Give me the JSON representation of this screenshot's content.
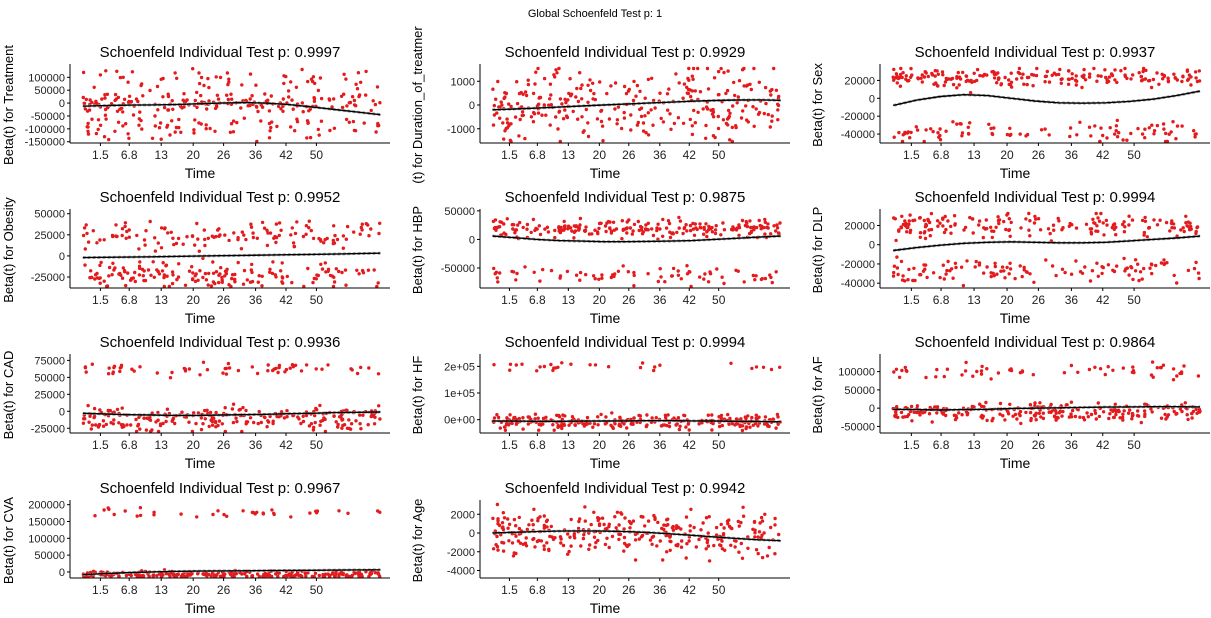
{
  "figure": {
    "global_title": "Global Schoenfeld Test p: 1",
    "colors": {
      "points": "#e41a1c",
      "line": "#000000",
      "band": "#9e9e9e",
      "axis": "#000000"
    }
  },
  "chart_data": [
    {
      "type": "scatter",
      "title": "Schoenfeld Individual Test p: 0.9997",
      "xlabel": "Time",
      "ylabel": "Beta(t) for Treatment",
      "x_ticks": [
        "1.5",
        "6.8",
        "13",
        "20",
        "26",
        "36",
        "42",
        "50"
      ],
      "y_ticks": [
        100000,
        50000,
        0,
        -50000,
        -100000,
        -150000
      ],
      "y_tick_labels": [
        "100000",
        "50000",
        "0",
        "-50000",
        "-100000",
        "-150000"
      ],
      "ylim": [
        -155000,
        140000
      ],
      "grid": false,
      "smooth": [
        -12000,
        -10000,
        -8000,
        -7000,
        -6000,
        -3000,
        0,
        2000,
        0,
        -6000,
        -15000,
        -25000,
        -35000,
        -45000
      ],
      "clusters": [
        {
          "center": 0,
          "spread": 18000,
          "frac": 0.55
        },
        {
          "center": 85000,
          "spread": 25000,
          "frac": 0.2
        },
        {
          "center": -95000,
          "spread": 25000,
          "frac": 0.25
        }
      ]
    },
    {
      "type": "scatter",
      "title": "Schoenfeld Individual Test p: 0.9929",
      "xlabel": "Time",
      "ylabel": "(t) for Duration_of_treatmer",
      "x_ticks": [
        "1.5",
        "6.8",
        "13",
        "20",
        "26",
        "36",
        "42",
        "50"
      ],
      "y_ticks": [
        1000,
        0,
        -1000
      ],
      "y_tick_labels": [
        "1000",
        "0",
        "-1000"
      ],
      "ylim": [
        -1600,
        1600
      ],
      "grid": false,
      "smooth": [
        -200,
        -170,
        -130,
        -90,
        -40,
        0,
        40,
        80,
        120,
        160,
        190,
        210,
        215,
        200
      ],
      "clusters": [
        {
          "center": 0,
          "spread": 750,
          "frac": 1.0
        }
      ]
    },
    {
      "type": "scatter",
      "title": "Schoenfeld Individual Test p: 0.9937",
      "xlabel": "Time",
      "ylabel": "Beta(t) for Sex",
      "x_ticks": [
        "1.5",
        "6.8",
        "13",
        "20",
        "26",
        "36",
        "42",
        "50"
      ],
      "y_ticks": [
        20000,
        0,
        -20000,
        -40000
      ],
      "y_tick_labels": [
        "20000",
        "0",
        "-20000",
        "-40000"
      ],
      "ylim": [
        -50000,
        35000
      ],
      "grid": false,
      "smooth": [
        -8000,
        -2000,
        2000,
        4000,
        3000,
        0,
        -3000,
        -5000,
        -5500,
        -5000,
        -3500,
        -1000,
        3000,
        8000
      ],
      "clusters": [
        {
          "center": 23000,
          "spread": 5500,
          "frac": 0.7
        },
        {
          "center": -38000,
          "spread": 5500,
          "frac": 0.3
        }
      ]
    },
    {
      "type": "scatter",
      "title": "Schoenfeld Individual Test p: 0.9952",
      "xlabel": "Time",
      "ylabel": "Beta(t) for Obesity",
      "x_ticks": [
        "1.5",
        "6.8",
        "13",
        "20",
        "26",
        "36",
        "42",
        "50"
      ],
      "y_ticks": [
        50000,
        25000,
        0,
        -25000
      ],
      "y_tick_labels": [
        "50000",
        "25000",
        "0",
        "-25000"
      ],
      "ylim": [
        -38000,
        52000
      ],
      "grid": false,
      "smooth": [
        -2000,
        -1700,
        -1400,
        -1000,
        -600,
        -200,
        200,
        600,
        1000,
        1400,
        1800,
        2200,
        2700,
        3200
      ],
      "clusters": [
        {
          "center": 25000,
          "spread": 8000,
          "frac": 0.5
        },
        {
          "center": -22000,
          "spread": 8000,
          "frac": 0.5
        }
      ]
    },
    {
      "type": "scatter",
      "title": "Schoenfeld Individual Test p: 0.9875",
      "xlabel": "Time",
      "ylabel": "Beta(t) for HBP",
      "x_ticks": [
        "1.5",
        "6.8",
        "13",
        "20",
        "26",
        "36",
        "42",
        "50"
      ],
      "y_ticks": [
        50000,
        0,
        -50000
      ],
      "y_tick_labels": [
        "50000",
        "0",
        "-50000"
      ],
      "ylim": [
        -85000,
        48000
      ],
      "grid": false,
      "smooth": [
        6000,
        3000,
        0,
        -2000,
        -3000,
        -4000,
        -4000,
        -3500,
        -3000,
        -2000,
        0,
        2000,
        4000,
        6000
      ],
      "clusters": [
        {
          "center": 18000,
          "spread": 8000,
          "frac": 0.75
        },
        {
          "center": -65000,
          "spread": 8000,
          "frac": 0.25
        }
      ]
    },
    {
      "type": "scatter",
      "title": "Schoenfeld Individual Test p: 0.9994",
      "xlabel": "Time",
      "ylabel": "Beta(t) for DLP",
      "x_ticks": [
        "1.5",
        "6.8",
        "13",
        "20",
        "26",
        "36",
        "42",
        "50"
      ],
      "y_ticks": [
        20000,
        0,
        -20000,
        -40000
      ],
      "y_tick_labels": [
        "20000",
        "0",
        "-20000",
        "-40000"
      ],
      "ylim": [
        -45000,
        34000
      ],
      "grid": false,
      "smooth": [
        -6000,
        -3000,
        -500,
        1500,
        2500,
        3000,
        2500,
        2000,
        2000,
        2500,
        4000,
        5500,
        7000,
        9000
      ],
      "clusters": [
        {
          "center": 20000,
          "spread": 6000,
          "frac": 0.6
        },
        {
          "center": -27000,
          "spread": 6000,
          "frac": 0.4
        }
      ]
    },
    {
      "type": "scatter",
      "title": "Schoenfeld Individual Test p: 0.9936",
      "xlabel": "Time",
      "ylabel": "Beta(t) for CAD",
      "x_ticks": [
        "1.5",
        "6.8",
        "13",
        "20",
        "26",
        "36",
        "42",
        "50"
      ],
      "y_ticks": [
        75000,
        50000,
        25000,
        0,
        -25000
      ],
      "y_tick_labels": [
        "75000",
        "50000",
        "25000",
        "0",
        "-25000"
      ],
      "ylim": [
        -32000,
        80000
      ],
      "grid": false,
      "smooth": [
        -3000,
        -4000,
        -5000,
        -5500,
        -6000,
        -6000,
        -5500,
        -5000,
        -4500,
        -3500,
        -3000,
        -2000,
        -1500,
        -1000
      ],
      "clusters": [
        {
          "center": -10000,
          "spread": 9000,
          "frac": 0.82
        },
        {
          "center": 62000,
          "spread": 5000,
          "frac": 0.18
        }
      ]
    },
    {
      "type": "scatter",
      "title": "Schoenfeld Individual Test p: 0.9994",
      "xlabel": "Time",
      "ylabel": "Beta(t) for HF",
      "x_ticks": [
        "1.5",
        "6.8",
        "13",
        "20",
        "26",
        "36",
        "42",
        "50"
      ],
      "y_ticks": [
        200000,
        100000,
        0
      ],
      "y_tick_labels": [
        "2e+05",
        "1e+05",
        "0e+00"
      ],
      "ylim": [
        -50000,
        235000
      ],
      "grid": false,
      "smooth": [
        -5000,
        -5500,
        -6000,
        -6000,
        -5500,
        -5000,
        -4500,
        -4000,
        -4000,
        -4500,
        -5000,
        -6000,
        -7000,
        -8000
      ],
      "clusters": [
        {
          "center": -8000,
          "spread": 14000,
          "frac": 0.88
        },
        {
          "center": 200000,
          "spread": 10000,
          "frac": 0.12
        }
      ]
    },
    {
      "type": "scatter",
      "title": "Schoenfeld Individual Test p: 0.9864",
      "xlabel": "Time",
      "ylabel": "Beta(t) for AF",
      "x_ticks": [
        "1.5",
        "6.8",
        "13",
        "20",
        "26",
        "36",
        "42",
        "50"
      ],
      "y_ticks": [
        100000,
        50000,
        0,
        -50000
      ],
      "y_tick_labels": [
        "100000",
        "50000",
        "0",
        "-50000"
      ],
      "ylim": [
        -68000,
        140000
      ],
      "grid": false,
      "smooth": [
        -3000,
        -4000,
        -5000,
        -4000,
        -3000,
        -1000,
        0,
        1000,
        2000,
        3000,
        3500,
        4000,
        4000,
        3500
      ],
      "clusters": [
        {
          "center": -12000,
          "spread": 13000,
          "frac": 0.8
        },
        {
          "center": 100000,
          "spread": 12000,
          "frac": 0.2
        }
      ]
    },
    {
      "type": "scatter",
      "title": "Schoenfeld Individual Test p: 0.9967",
      "xlabel": "Time",
      "ylabel": "Beta(t) for CVA",
      "x_ticks": [
        "1.5",
        "6.8",
        "13",
        "20",
        "26",
        "36",
        "42",
        "50"
      ],
      "y_ticks": [
        200000,
        150000,
        100000,
        50000,
        0
      ],
      "y_tick_labels": [
        "200000",
        "150000",
        "100000",
        "50000",
        "0"
      ],
      "ylim": [
        -18000,
        205000
      ],
      "grid": false,
      "smooth": [
        -8000,
        -5000,
        -2000,
        0,
        1500,
        2500,
        3000,
        3500,
        4000,
        4500,
        5000,
        5500,
        6000,
        6500
      ],
      "clusters": [
        {
          "center": -8000,
          "spread": 6000,
          "frac": 0.85
        },
        {
          "center": 175000,
          "spread": 6000,
          "frac": 0.15
        }
      ]
    },
    {
      "type": "scatter",
      "title": "Schoenfeld Individual Test p: 0.9942",
      "xlabel": "Time",
      "ylabel": "Beta(t) for Age",
      "x_ticks": [
        "1.5",
        "6.8",
        "13",
        "20",
        "26",
        "36",
        "42",
        "50"
      ],
      "y_ticks": [
        2000,
        0,
        -2000,
        -4000
      ],
      "y_tick_labels": [
        "2000",
        "0",
        "-2000",
        "-4000"
      ],
      "ylim": [
        -4800,
        3200
      ],
      "grid": false,
      "smooth": [
        0,
        80,
        150,
        200,
        220,
        200,
        150,
        60,
        -80,
        -250,
        -420,
        -580,
        -720,
        -820
      ],
      "clusters": [
        {
          "center": 0,
          "spread": 1200,
          "frac": 1.0
        }
      ]
    }
  ]
}
